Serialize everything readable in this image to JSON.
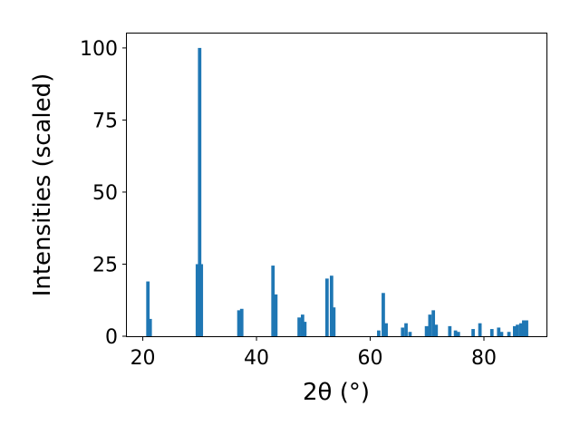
{
  "chart_data": {
    "type": "bar",
    "title": "",
    "xlabel": "2θ (°)",
    "ylabel": "Intensities (scaled)",
    "xlim": [
      17.2,
      91.0
    ],
    "ylim": [
      0,
      105
    ],
    "xticks": [
      20,
      40,
      60,
      80
    ],
    "yticks": [
      0,
      25,
      50,
      75,
      100
    ],
    "grid": false,
    "bar_color": "#1f77b4",
    "bar_width": 0.6,
    "series": [
      {
        "x": [
          20.9,
          21.3,
          29.6,
          30.0,
          30.3,
          36.9,
          37.4,
          42.9,
          43.4,
          47.5,
          48.1,
          48.5,
          52.4,
          53.2,
          53.6,
          61.5,
          62.3,
          62.8,
          65.7,
          66.3,
          67.0,
          69.9,
          70.5,
          71.1,
          71.6,
          74.0,
          75.0,
          75.5,
          78.1,
          79.3,
          81.4,
          82.6,
          83.1,
          84.4,
          85.4,
          85.9,
          86.5,
          87.0,
          87.5
        ],
        "values": [
          19,
          6,
          25,
          100,
          25,
          9,
          9.5,
          24.5,
          14.5,
          6.5,
          7.5,
          5,
          20,
          21,
          10,
          2,
          15,
          4.5,
          3,
          4.5,
          1.5,
          3.5,
          7.5,
          9,
          4,
          3.5,
          2,
          1.5,
          2.5,
          4.5,
          2.5,
          3,
          1.5,
          1.5,
          3.5,
          4,
          4.5,
          5.5,
          5.5
        ]
      }
    ]
  }
}
